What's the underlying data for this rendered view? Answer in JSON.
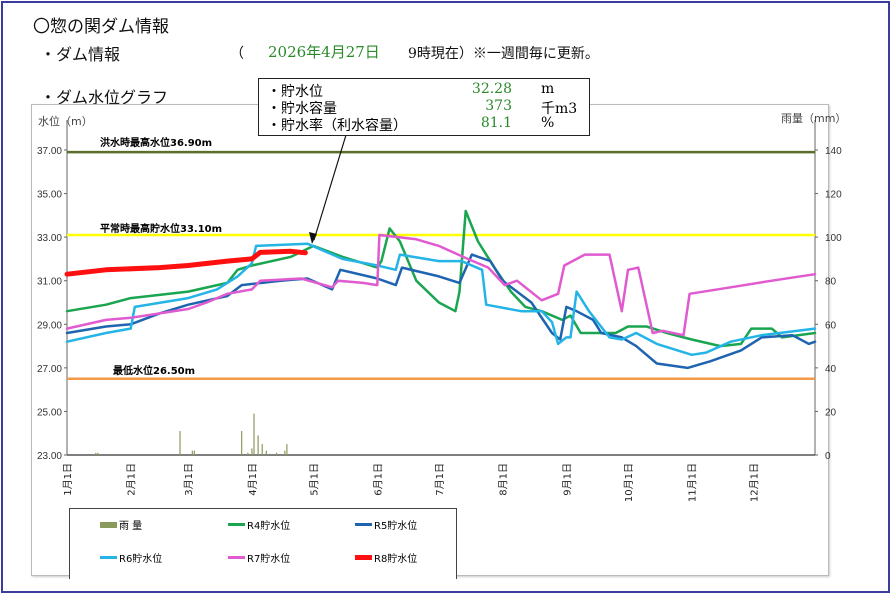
{
  "header": {
    "title": "〇惣の関ダム情報",
    "subtitle": "・ダム情報",
    "paren_open": "（",
    "date": "2026年4月27日",
    "note": "9時現在）※一週間毎に更新。",
    "graph_title": "・ダム水位グラフ"
  },
  "callout": {
    "rows": [
      {
        "label": "・貯水位",
        "value": "32.28",
        "unit": "m"
      },
      {
        "label": "・貯水容量",
        "value": "373",
        "unit": "千m3"
      },
      {
        "label": "・貯水率（利水容量）",
        "value": "81.1",
        "unit": "%"
      }
    ]
  },
  "chart_data": {
    "type": "line",
    "ylabel_left": "水位（m）",
    "ylabel_right": "雨量（mm）",
    "ylim_left": [
      23,
      37
    ],
    "ylim_right": [
      0,
      140
    ],
    "yticks_left": [
      "23.00",
      "25.00",
      "27.00",
      "29.00",
      "31.00",
      "33.00",
      "35.00",
      "37.00"
    ],
    "yticks_right": [
      "0",
      "20",
      "40",
      "60",
      "80",
      "100",
      "120",
      "140"
    ],
    "xticks": [
      "1月1日",
      "2月1日",
      "3月1日",
      "4月1日",
      "5月1日",
      "6月1日",
      "7月1日",
      "8月1日",
      "9月1日",
      "10月1日",
      "11月1日",
      "12月1日"
    ],
    "reference_lines": [
      {
        "label": "洪水時最高水位36.90m",
        "value": 36.9,
        "color": "#5a6e2a"
      },
      {
        "label": "平常時最高貯水位33.10m",
        "value": 33.1,
        "color": "#ffff00"
      },
      {
        "label": "最低水位26.50m",
        "value": 26.5,
        "color": "#f39a4a"
      }
    ],
    "rain": {
      "name": "雨 量",
      "color": "#8a9a5b",
      "points": [
        [
          "1/15",
          1
        ],
        [
          "1/16",
          1
        ],
        [
          "2/25",
          11
        ],
        [
          "3/3",
          2
        ],
        [
          "3/4",
          2
        ],
        [
          "3/27",
          11
        ],
        [
          "3/30",
          1
        ],
        [
          "4/1",
          3
        ],
        [
          "4/2",
          19
        ],
        [
          "4/4",
          9
        ],
        [
          "4/6",
          5
        ],
        [
          "4/8",
          2
        ],
        [
          "4/13",
          1
        ],
        [
          "4/17",
          2
        ],
        [
          "4/18",
          5
        ]
      ]
    },
    "series": [
      {
        "name": "R4貯水位",
        "color": "#1aa550",
        "width": 2.5,
        "points": [
          [
            "1/1",
            29.6
          ],
          [
            "1/20",
            29.9
          ],
          [
            "2/1",
            30.2
          ],
          [
            "3/1",
            30.5
          ],
          [
            "3/20",
            30.9
          ],
          [
            "3/25",
            31.5
          ],
          [
            "4/1",
            31.7
          ],
          [
            "4/20",
            32.1
          ],
          [
            "5/1",
            32.6
          ],
          [
            "5/15",
            32.1
          ],
          [
            "6/1",
            31.6
          ],
          [
            "6/3",
            31.9
          ],
          [
            "6/7",
            33.4
          ],
          [
            "6/12",
            32.8
          ],
          [
            "6/20",
            31.0
          ],
          [
            "7/1",
            30.0
          ],
          [
            "7/9",
            29.6
          ],
          [
            "7/11",
            30.5
          ],
          [
            "7/14",
            34.2
          ],
          [
            "7/20",
            32.8
          ],
          [
            "7/28",
            31.6
          ],
          [
            "8/5",
            30.5
          ],
          [
            "8/12",
            29.8
          ],
          [
            "8/20",
            29.6
          ],
          [
            "8/30",
            29.2
          ],
          [
            "9/3",
            29.4
          ],
          [
            "9/8",
            28.6
          ],
          [
            "9/25",
            28.6
          ],
          [
            "10/1",
            28.9
          ],
          [
            "10/10",
            28.9
          ],
          [
            "10/20",
            28.6
          ],
          [
            "11/1",
            28.3
          ],
          [
            "11/15",
            28.0
          ],
          [
            "11/25",
            28.1
          ],
          [
            "11/30",
            28.8
          ],
          [
            "12/10",
            28.8
          ],
          [
            "12/15",
            28.4
          ],
          [
            "12/31",
            28.6
          ]
        ]
      },
      {
        "name": "R5貯水位",
        "color": "#1f64b0",
        "width": 2.5,
        "points": [
          [
            "1/1",
            28.6
          ],
          [
            "1/20",
            28.9
          ],
          [
            "2/1",
            29.0
          ],
          [
            "2/15",
            29.5
          ],
          [
            "3/1",
            29.9
          ],
          [
            "3/20",
            30.3
          ],
          [
            "3/27",
            30.8
          ],
          [
            "4/15",
            31.0
          ],
          [
            "4/28",
            31.1
          ],
          [
            "5/10",
            30.6
          ],
          [
            "5/14",
            31.5
          ],
          [
            "6/1",
            31.1
          ],
          [
            "6/10",
            30.8
          ],
          [
            "6/13",
            31.6
          ],
          [
            "7/1",
            31.2
          ],
          [
            "7/11",
            30.9
          ],
          [
            "7/17",
            32.2
          ],
          [
            "7/26",
            31.9
          ],
          [
            "8/1",
            31.0
          ],
          [
            "8/15",
            30.0
          ],
          [
            "8/25",
            28.6
          ],
          [
            "8/29",
            28.3
          ],
          [
            "9/1",
            29.8
          ],
          [
            "9/6",
            29.6
          ],
          [
            "9/14",
            29.2
          ],
          [
            "9/18",
            28.6
          ],
          [
            "9/28",
            28.4
          ],
          [
            "10/5",
            28.0
          ],
          [
            "10/15",
            27.2
          ],
          [
            "10/30",
            27.0
          ],
          [
            "11/10",
            27.3
          ],
          [
            "11/25",
            27.8
          ],
          [
            "12/5",
            28.4
          ],
          [
            "12/20",
            28.5
          ],
          [
            "12/28",
            28.1
          ],
          [
            "12/31",
            28.2
          ]
        ]
      },
      {
        "name": "R6貯水位",
        "color": "#25b4e6",
        "width": 2.5,
        "points": [
          [
            "1/1",
            28.2
          ],
          [
            "1/20",
            28.6
          ],
          [
            "2/1",
            28.8
          ],
          [
            "2/3",
            29.8
          ],
          [
            "3/1",
            30.2
          ],
          [
            "3/15",
            30.6
          ],
          [
            "3/20",
            30.9
          ],
          [
            "3/25",
            31.2
          ],
          [
            "4/1",
            31.8
          ],
          [
            "4/3",
            32.6
          ],
          [
            "4/28",
            32.7
          ],
          [
            "5/15",
            32.0
          ],
          [
            "6/1",
            31.7
          ],
          [
            "6/10",
            31.5
          ],
          [
            "6/12",
            32.2
          ],
          [
            "7/1",
            31.9
          ],
          [
            "7/12",
            31.9
          ],
          [
            "7/22",
            31.5
          ],
          [
            "7/24",
            29.9
          ],
          [
            "8/10",
            29.6
          ],
          [
            "8/20",
            29.6
          ],
          [
            "8/25",
            29.1
          ],
          [
            "8/28",
            28.1
          ],
          [
            "9/1",
            28.4
          ],
          [
            "9/3",
            28.4
          ],
          [
            "9/6",
            30.5
          ],
          [
            "9/12",
            29.6
          ],
          [
            "9/22",
            28.4
          ],
          [
            "9/28",
            28.3
          ],
          [
            "10/5",
            28.6
          ],
          [
            "10/15",
            28.1
          ],
          [
            "11/1",
            27.6
          ],
          [
            "11/8",
            27.7
          ],
          [
            "11/20",
            28.2
          ],
          [
            "12/5",
            28.5
          ],
          [
            "12/31",
            28.8
          ]
        ]
      },
      {
        "name": "R7貯水位",
        "color": "#e05ad0",
        "width": 2.5,
        "points": [
          [
            "1/1",
            28.8
          ],
          [
            "1/20",
            29.2
          ],
          [
            "2/1",
            29.3
          ],
          [
            "3/1",
            29.7
          ],
          [
            "3/10",
            30.0
          ],
          [
            "3/20",
            30.4
          ],
          [
            "4/1",
            30.6
          ],
          [
            "4/5",
            31.0
          ],
          [
            "4/25",
            31.1
          ],
          [
            "5/10",
            30.7
          ],
          [
            "5/13",
            31.0
          ],
          [
            "5/25",
            30.9
          ],
          [
            "6/1",
            30.8
          ],
          [
            "6/2",
            33.1
          ],
          [
            "6/20",
            32.9
          ],
          [
            "7/1",
            32.6
          ],
          [
            "7/15",
            32.0
          ],
          [
            "7/25",
            31.6
          ],
          [
            "8/2",
            30.8
          ],
          [
            "8/8",
            31.0
          ],
          [
            "8/20",
            30.1
          ],
          [
            "8/28",
            30.4
          ],
          [
            "8/31",
            31.7
          ],
          [
            "9/10",
            32.2
          ],
          [
            "9/22",
            32.2
          ],
          [
            "9/28",
            29.6
          ],
          [
            "10/1",
            31.5
          ],
          [
            "10/6",
            31.6
          ],
          [
            "10/13",
            28.6
          ],
          [
            "10/18",
            28.7
          ],
          [
            "10/28",
            28.5
          ],
          [
            "10/31",
            30.4
          ],
          [
            "11/20",
            30.7
          ],
          [
            "12/10",
            31.0
          ],
          [
            "12/31",
            31.3
          ]
        ]
      },
      {
        "name": "R8貯水位",
        "color": "#ff1010",
        "width": 5,
        "points": [
          [
            "1/1",
            31.3
          ],
          [
            "1/20",
            31.5
          ],
          [
            "2/15",
            31.6
          ],
          [
            "3/1",
            31.7
          ],
          [
            "3/20",
            31.9
          ],
          [
            "4/1",
            32.0
          ],
          [
            "4/5",
            32.3
          ],
          [
            "4/20",
            32.35
          ],
          [
            "4/27",
            32.28
          ]
        ]
      }
    ],
    "legend": {
      "position": "bottom-left"
    },
    "grid": false
  }
}
